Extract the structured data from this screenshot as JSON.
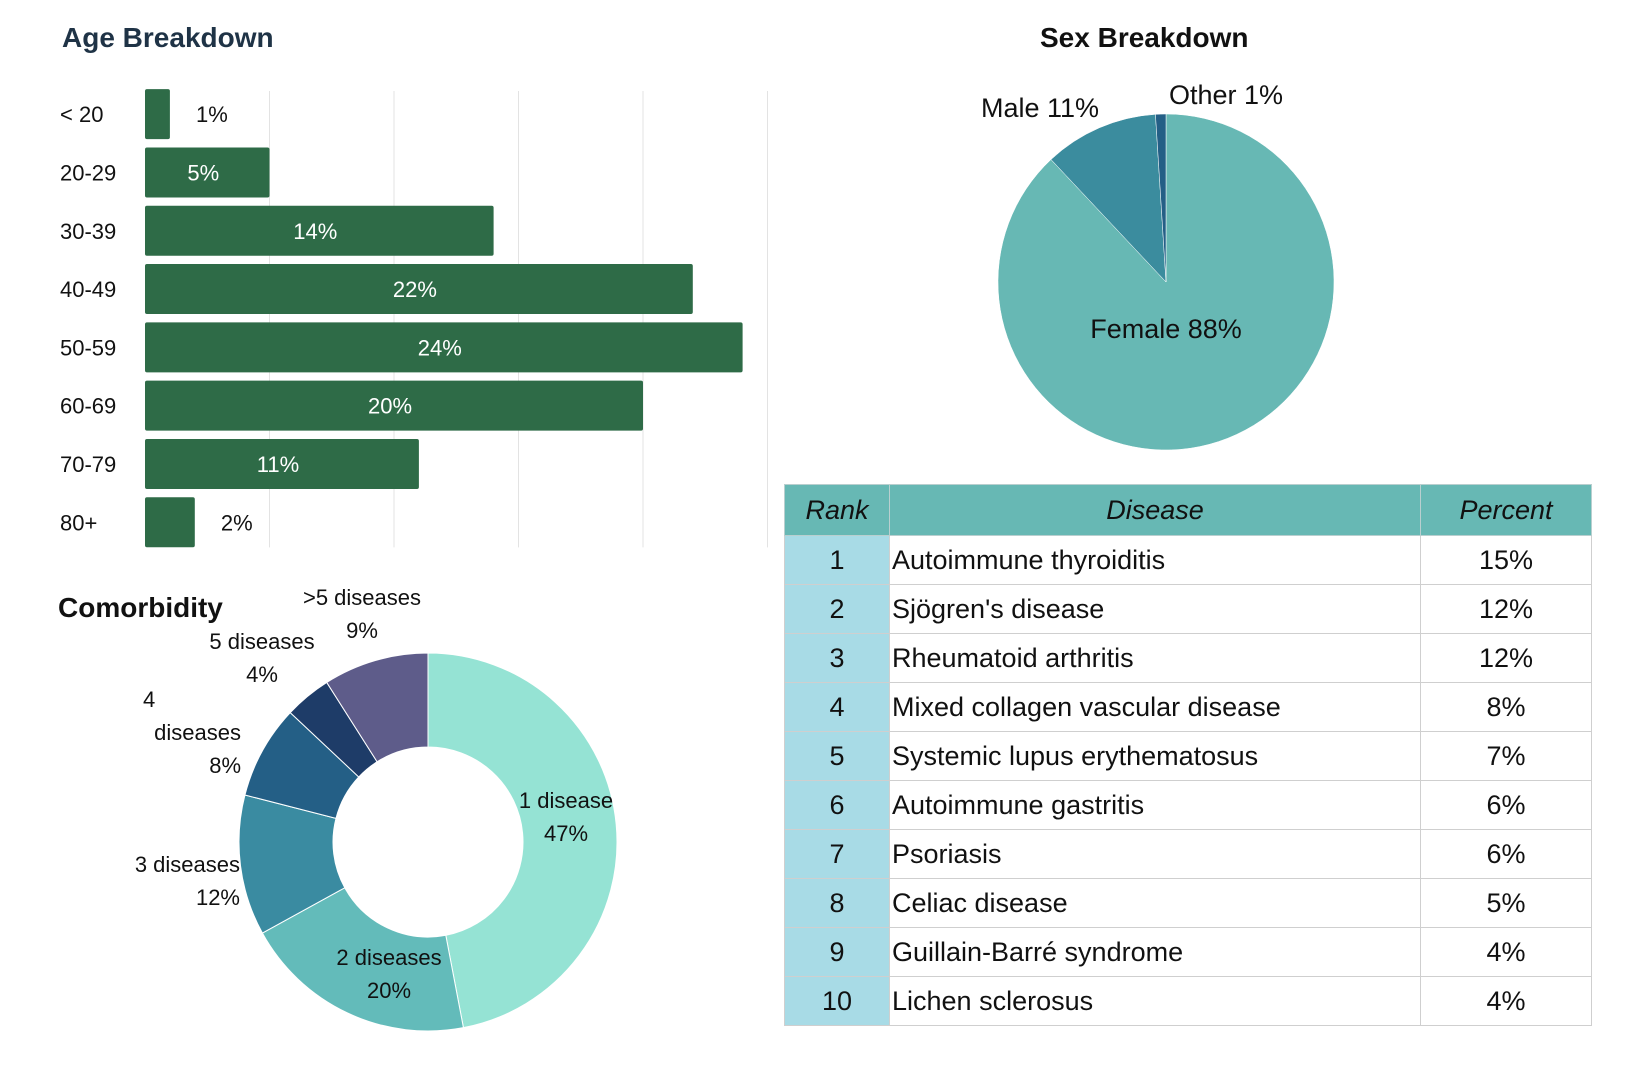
{
  "age": {
    "title": "Age Breakdown",
    "chart_data": {
      "type": "bar",
      "orientation": "horizontal",
      "categories": [
        "< 20",
        "20-29",
        "30-39",
        "40-49",
        "50-59",
        "60-69",
        "70-79",
        "80+"
      ],
      "values": [
        1,
        5,
        14,
        22,
        24,
        20,
        11,
        2
      ],
      "labels": [
        "1%",
        "5%",
        "14%",
        "22%",
        "24%",
        "20%",
        "11%",
        "2%"
      ],
      "xlim": [
        0,
        25
      ],
      "grid": true,
      "color": "#2e6b47"
    }
  },
  "sex": {
    "title": "Sex Breakdown",
    "chart_data": {
      "type": "pie",
      "slices": [
        {
          "name": "Female",
          "value": 88,
          "label": "Female 88%",
          "color": "#67b8b4"
        },
        {
          "name": "Male",
          "value": 11,
          "label": "Male 11%",
          "color": "#3b8c9e"
        },
        {
          "name": "Other",
          "value": 1,
          "label": "Other 1%",
          "color": "#245f86"
        }
      ]
    }
  },
  "comorbidity": {
    "title": "Comorbidity",
    "chart_data": {
      "type": "pie",
      "donut": true,
      "slices": [
        {
          "name": "1 disease",
          "value": 47,
          "lines": [
            "1 disease",
            "47%"
          ],
          "color": "#95e3d4"
        },
        {
          "name": "2 diseases",
          "value": 20,
          "lines": [
            "2 diseases",
            "20%"
          ],
          "color": "#63bbba"
        },
        {
          "name": "3 diseases",
          "value": 12,
          "lines": [
            "3 diseases",
            "12%"
          ],
          "color": "#3a8ba1"
        },
        {
          "name": "4 diseases",
          "value": 8,
          "lines": [
            "4",
            "diseases",
            "8%"
          ],
          "color": "#245f86"
        },
        {
          "name": "5 diseases",
          "value": 4,
          "lines": [
            "5 diseases",
            "4%"
          ],
          "color": "#1e3c68"
        },
        {
          "name": ">5 diseases",
          "value": 9,
          "lines": [
            ">5 diseases",
            "9%"
          ],
          "color": "#5e5c8a"
        }
      ]
    }
  },
  "table": {
    "headers": {
      "rank": "Rank",
      "disease": "Disease",
      "percent": "Percent"
    },
    "rows": [
      {
        "rank": "1",
        "disease": "Autoimmune thyroiditis",
        "percent": "15%"
      },
      {
        "rank": "2",
        "disease": "Sjögren's disease",
        "percent": "12%"
      },
      {
        "rank": "3",
        "disease": "Rheumatoid arthritis",
        "percent": "12%"
      },
      {
        "rank": "4",
        "disease": "Mixed collagen vascular disease",
        "percent": "8%"
      },
      {
        "rank": "5",
        "disease": "Systemic lupus erythematosus",
        "percent": "7%"
      },
      {
        "rank": "6",
        "disease": "Autoimmune gastritis",
        "percent": "6%"
      },
      {
        "rank": "7",
        "disease": "Psoriasis",
        "percent": "6%"
      },
      {
        "rank": "8",
        "disease": "Celiac disease",
        "percent": "5%"
      },
      {
        "rank": "9",
        "disease": "Guillain-Barré syndrome",
        "percent": "4%"
      },
      {
        "rank": "10",
        "disease": "Lichen sclerosus",
        "percent": "4%"
      }
    ]
  }
}
